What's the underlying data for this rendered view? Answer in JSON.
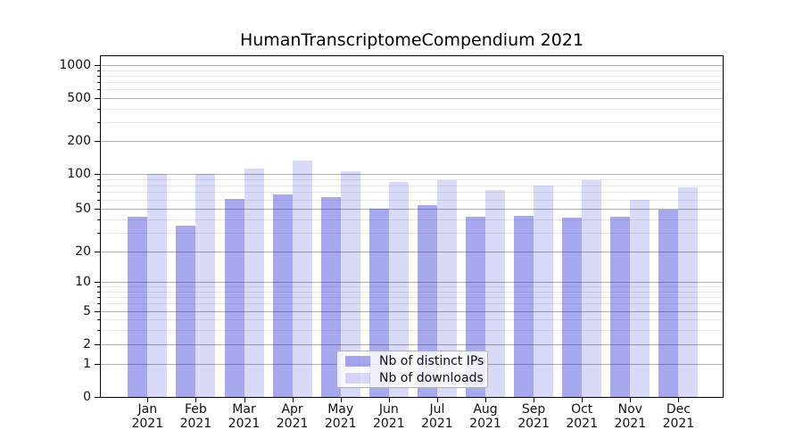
{
  "chart_data": {
    "type": "bar",
    "title": "HumanTranscriptomeCompendium 2021",
    "categories": [
      "Jan 2021",
      "Feb 2021",
      "Mar 2021",
      "Apr 2021",
      "May 2021",
      "Jun 2021",
      "Jul 2021",
      "Aug 2021",
      "Sep 2021",
      "Oct 2021",
      "Nov 2021",
      "Dec 2021"
    ],
    "series": [
      {
        "name": "Nb of distinct IPs",
        "color_css": "rgba(0,0,205,0.34)",
        "color_hex_on_white": "#a8a8ee",
        "values": [
          42,
          35,
          61,
          67,
          63,
          50,
          54,
          42,
          43,
          41,
          42,
          49
        ]
      },
      {
        "name": "Nb of downloads",
        "color_css": "rgba(0,0,205,0.15)",
        "color_hex_on_white": "#d9d9f7",
        "values": [
          100,
          101,
          112,
          133,
          105,
          86,
          88,
          73,
          80,
          88,
          60,
          77
        ]
      }
    ],
    "xlabel": "",
    "ylabel": "",
    "yscale": "symlog",
    "ylim": [
      0,
      1000
    ],
    "yticks": [
      0,
      1,
      2,
      5,
      10,
      20,
      50,
      100,
      200,
      500,
      1000
    ],
    "yticks_minor": [
      3,
      4,
      6,
      7,
      8,
      9,
      30,
      40,
      60,
      70,
      80,
      90,
      300,
      400,
      600,
      700,
      800,
      900
    ],
    "grid": "horizontal-major-and-minor",
    "legend_position": "lower center",
    "colors": {
      "grid_major": "#b0b0b0",
      "grid_minor": "#e8e8e8",
      "axis": "#000000",
      "text": "#111111",
      "background": "#ffffff"
    }
  }
}
